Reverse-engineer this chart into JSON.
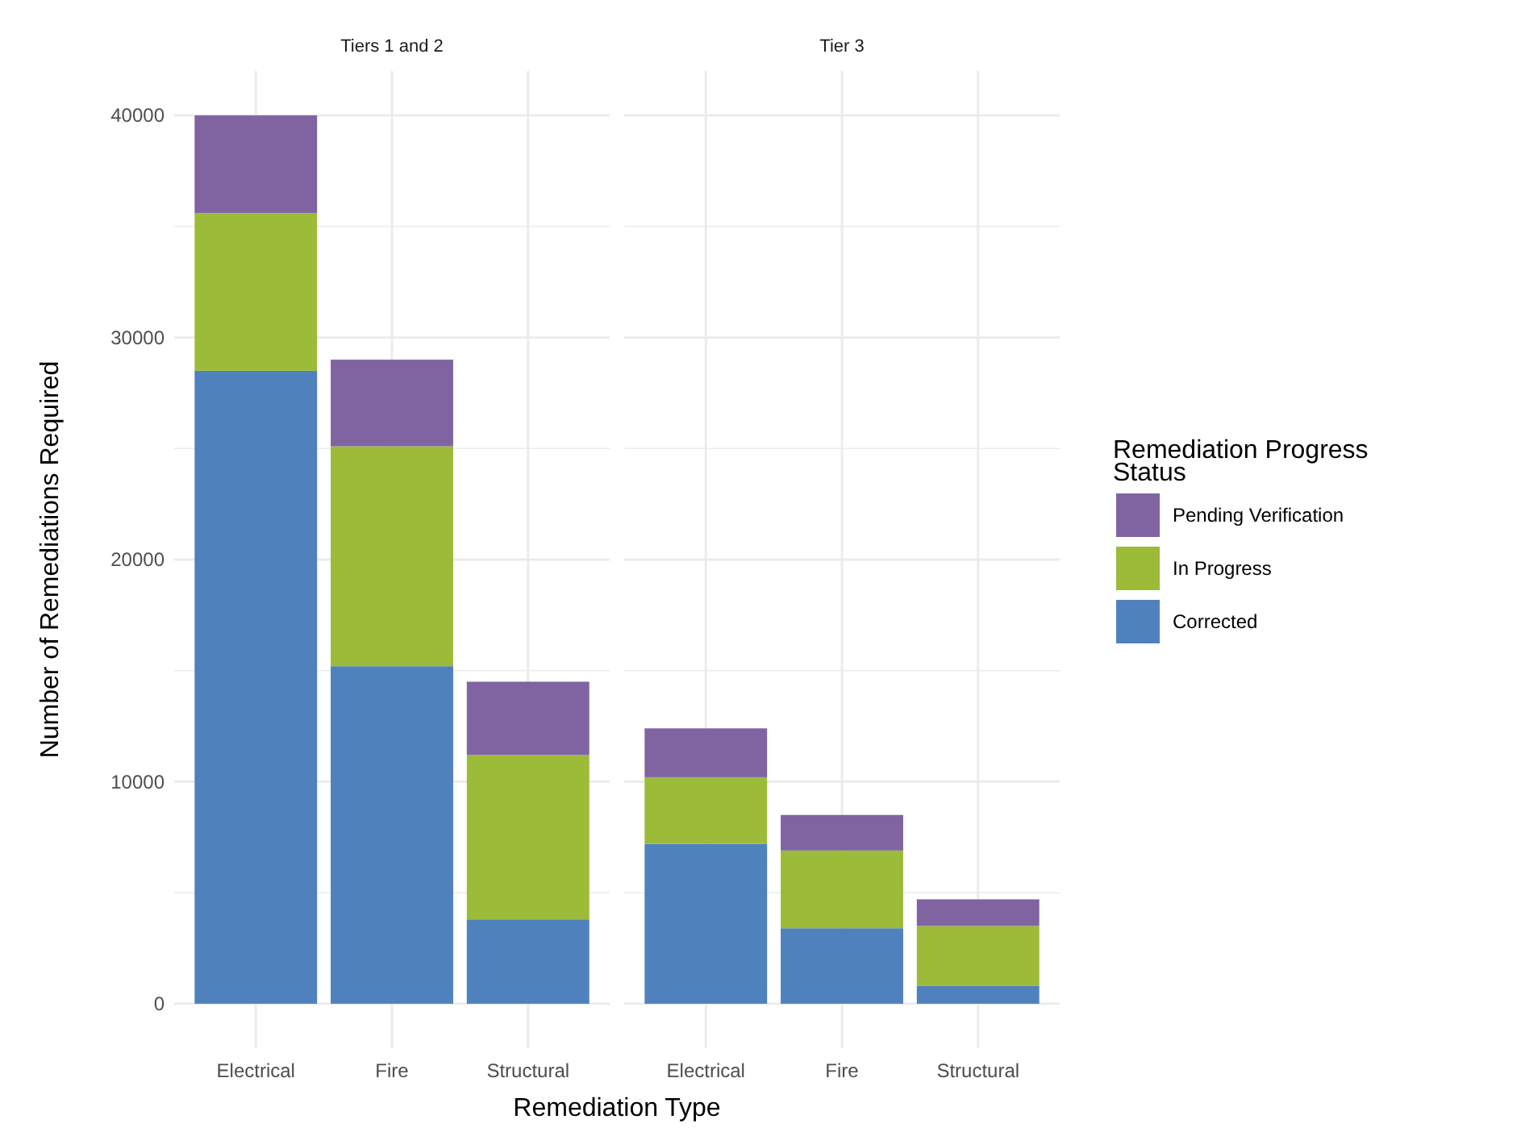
{
  "chart_data": [
    {
      "type": "bar",
      "title": "Tiers 1 and 2",
      "xlabel": "Remediation Type",
      "ylabel": "Number of Remediations Required",
      "legend": "right",
      "stacked": true,
      "grid": true,
      "categories": [
        "Electrical",
        "Fire",
        "Structural"
      ],
      "series": [
        {
          "name": "Corrected",
          "color": "#4f81bd",
          "values": [
            28500,
            15200,
            3800
          ]
        },
        {
          "name": "In Progress",
          "color": "#9bbb39",
          "values": [
            7100,
            9900,
            7400
          ]
        },
        {
          "name": "Pending Verification",
          "color": "#8064a2",
          "values": [
            4400,
            3900,
            3300
          ]
        }
      ],
      "ylim": [
        -2000,
        42000
      ],
      "yticks": [
        0,
        {
          "value": 5000,
          "label": null
        },
        10000,
        {
          "value": 15000,
          "label": null
        },
        20000,
        {
          "value": 25000,
          "label": null
        },
        30000,
        {
          "value": 35000,
          "label": null
        },
        40000
      ]
    },
    {
      "type": "bar",
      "title": "Tier 3",
      "legend_title": "Remediation Progress Status",
      "legend": "right",
      "stacked": true,
      "grid": true,
      "tick_labels": "x",
      "categories": [
        "Electrical",
        "Fire",
        "Structural"
      ],
      "series": [
        {
          "name": "Corrected",
          "color": "#4f81bd",
          "values": [
            7200,
            3400,
            800
          ]
        },
        {
          "name": "In Progress",
          "color": "#9bbb39",
          "values": [
            3000,
            3500,
            2700
          ]
        },
        {
          "name": "Pending Verification",
          "color": "#8064a2",
          "values": [
            2200,
            1600,
            1200
          ]
        }
      ],
      "ylim": [
        -2000,
        42000
      ],
      "yticks": [
        0,
        {
          "value": 5000,
          "label": null
        },
        10000,
        {
          "value": 15000,
          "label": null
        },
        20000,
        {
          "value": 25000,
          "label": null
        },
        30000,
        {
          "value": 35000,
          "label": null
        },
        40000
      ]
    }
  ]
}
